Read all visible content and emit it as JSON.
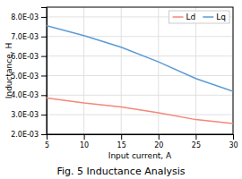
{
  "chart_data": {
    "type": "line",
    "title": "Fig. 5 Inductance Analysis",
    "x_label": "Input current, A",
    "y_label": "Inductance, H",
    "x": [
      5,
      10,
      15,
      20,
      25,
      30
    ],
    "series": [
      {
        "name": "Ld",
        "color": "#f4877a",
        "values": [
          0.00385,
          0.0036,
          0.0034,
          0.0031,
          0.00275,
          0.00255
        ]
      },
      {
        "name": "Lq",
        "color": "#5b9bd5",
        "values": [
          0.00755,
          0.00705,
          0.00645,
          0.0057,
          0.00485,
          0.0042
        ]
      }
    ],
    "xlim": [
      5,
      30
    ],
    "xticks": [
      5,
      10,
      15,
      20,
      25,
      30
    ],
    "ylim": [
      0.002,
      0.0085
    ],
    "yticks": [
      {
        "value": 0.002,
        "label": "2.0E-03"
      },
      {
        "value": 0.003,
        "label": "3.0E-03"
      },
      {
        "value": 0.004,
        "label": "4.0E-03"
      },
      {
        "value": 0.005,
        "label": "5.0E-03"
      },
      {
        "value": 0.006,
        "label": "6.0E-03"
      },
      {
        "value": 0.007,
        "label": "7.0E-03"
      },
      {
        "value": 0.008,
        "label": "8.0E-03"
      }
    ],
    "grid": true,
    "legend": "upper right"
  }
}
